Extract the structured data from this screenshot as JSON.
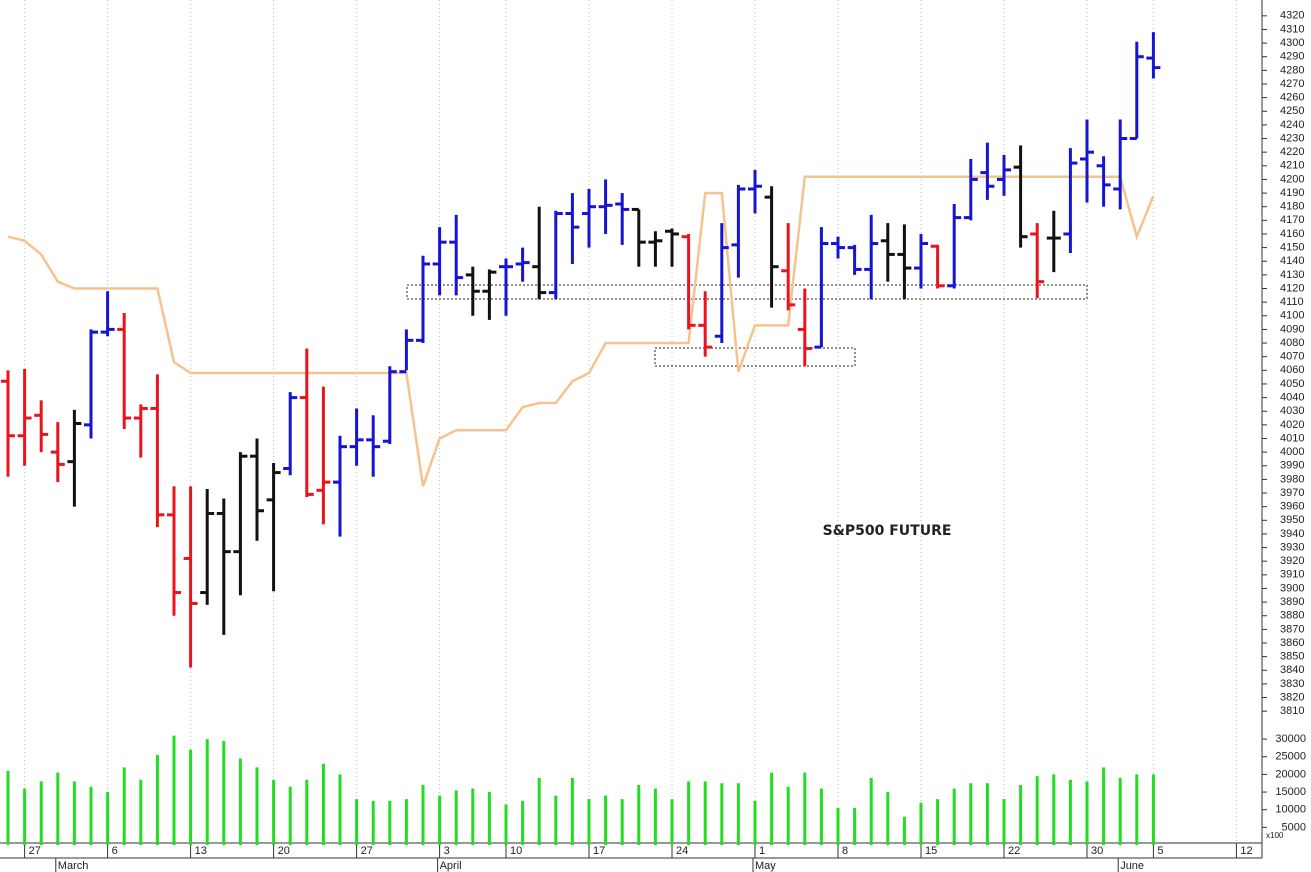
{
  "chart_data": {
    "type": "ohlc",
    "title": "S&P500 FUTURE",
    "categories": [
      null,
      "27",
      null,
      null,
      null,
      null,
      "6",
      null,
      null,
      null,
      null,
      "13",
      null,
      null,
      null,
      null,
      "20",
      null,
      null,
      null,
      null,
      "27",
      null,
      null,
      null,
      null,
      "3",
      null,
      null,
      null,
      "10",
      null,
      null,
      null,
      null,
      "17",
      null,
      null,
      null,
      null,
      "24",
      null,
      null,
      null,
      null,
      "1",
      null,
      null,
      null,
      null,
      "8",
      null,
      null,
      null,
      null,
      "15",
      null,
      null,
      null,
      null,
      "22",
      null,
      null,
      null,
      null,
      "30",
      null,
      null,
      null,
      "5",
      null,
      null,
      null,
      null,
      "12"
    ],
    "month_labels": [
      "March",
      "April",
      "May",
      "June"
    ],
    "open": [
      4052,
      4012,
      4027,
      4000,
      3993,
      4020,
      4088,
      4090,
      4025,
      4032,
      3954,
      3922,
      3897,
      3955,
      3927,
      3997,
      3965,
      3988,
      4040,
      3972,
      3978,
      4004,
      4009,
      4008,
      4059,
      4082,
      4138,
      4154,
      4130,
      4118,
      4136,
      4138,
      4136,
      4117,
      4175,
      4175,
      4180,
      4182,
      4178,
      4154,
      4162,
      4158,
      4093,
      4085,
      4152,
      4193,
      4187,
      4133,
      4090,
      4077,
      4153,
      4150,
      4134,
      4155,
      4145,
      4135,
      4151,
      4122,
      4172,
      4205,
      4200,
      4209,
      4160,
      4157,
      4160,
      4215,
      4210,
      4193,
      4230,
      4289,
      null,
      null,
      null,
      null,
      null
    ],
    "high": [
      4060,
      4061,
      4038,
      4022,
      4031,
      4090,
      4118,
      4102,
      4035,
      4057,
      3975,
      3975,
      3973,
      3966,
      4000,
      4010,
      3992,
      4044,
      4076,
      4048,
      4012,
      4032,
      4027,
      4063,
      4090,
      4144,
      4165,
      4174,
      4136,
      4134,
      4142,
      4150,
      4180,
      4177,
      4190,
      4193,
      4200,
      4190,
      4178,
      4162,
      4164,
      4160,
      4118,
      4168,
      4196,
      4207,
      4195,
      4168,
      4120,
      4165,
      4158,
      4152,
      4174,
      4168,
      4167,
      4160,
      4152,
      4182,
      4215,
      4227,
      4218,
      4225,
      4168,
      4177,
      4223,
      4244,
      4217,
      4244,
      4301,
      4308,
      null,
      null,
      null,
      null,
      null
    ],
    "low": [
      3982,
      3990,
      4000,
      3978,
      3960,
      4010,
      4085,
      4017,
      3996,
      3945,
      3880,
      3842,
      3888,
      3866,
      3895,
      3935,
      3898,
      3983,
      3967,
      3947,
      3938,
      3990,
      3982,
      4006,
      4060,
      4080,
      4115,
      4115,
      4100,
      4097,
      4100,
      4125,
      4112,
      4112,
      4138,
      4150,
      4160,
      4152,
      4136,
      4136,
      4136,
      4090,
      4070,
      4080,
      4128,
      4175,
      4106,
      4104,
      4063,
      4077,
      4142,
      4130,
      4112,
      4125,
      4112,
      4120,
      4120,
      4120,
      4170,
      4185,
      4188,
      4150,
      4113,
      4132,
      4146,
      4183,
      4180,
      4178,
      4230,
      4274,
      null,
      null,
      null,
      null,
      null
    ],
    "close": [
      4012,
      4025,
      4013,
      3991,
      4021,
      4088,
      4090,
      4025,
      4032,
      3954,
      3897,
      3889,
      3955,
      3927,
      3997,
      3957,
      3985,
      4040,
      3969,
      3978,
      4004,
      4009,
      4004,
      4059,
      4082,
      4138,
      4154,
      4128,
      4118,
      4132,
      4136,
      4139,
      4117,
      4175,
      4165,
      4180,
      4181,
      4178,
      4154,
      4155,
      4160,
      4093,
      4077,
      4150,
      4193,
      4195,
      4136,
      4108,
      4076,
      4153,
      4150,
      4134,
      4153,
      4145,
      4135,
      4153,
      4122,
      4172,
      4200,
      4195,
      4207,
      4158,
      4125,
      4157,
      4212,
      4220,
      4196,
      4230,
      4290,
      4282,
      null,
      null,
      null,
      null,
      null
    ],
    "bar_colors": [
      "r",
      "r",
      "r",
      "r",
      "k",
      "b",
      "b",
      "r",
      "r",
      "r",
      "r",
      "r",
      "k",
      "k",
      "k",
      "k",
      "k",
      "b",
      "r",
      "r",
      "b",
      "b",
      "b",
      "b",
      "b",
      "b",
      "b",
      "b",
      "k",
      "k",
      "b",
      "b",
      "k",
      "b",
      "b",
      "b",
      "b",
      "b",
      "k",
      "k",
      "k",
      "r",
      "r",
      "b",
      "b",
      "b",
      "k",
      "r",
      "r",
      "b",
      "b",
      "b",
      "b",
      "k",
      "k",
      "b",
      "r",
      "b",
      "b",
      "b",
      "b",
      "k",
      "r",
      "k",
      "b",
      "b",
      "b",
      "b",
      "b",
      "b",
      null,
      null,
      null,
      null,
      null
    ],
    "palette": {
      "r": "#e8141e",
      "k": "#111111",
      "b": "#1414d2"
    },
    "reference_line": {
      "color": "#f6c28e",
      "values": [
        4158,
        4155,
        4145,
        4125,
        4120,
        4120,
        4120,
        4120,
        4120,
        4120,
        4066,
        4058,
        4058,
        4058,
        4058,
        4058,
        4058,
        4058,
        4058,
        4058,
        4058,
        4058,
        4058,
        4058,
        4058,
        3975,
        4010,
        4016,
        4016,
        4016,
        4016,
        4033,
        4036,
        4036,
        4052,
        4058,
        4080,
        4080,
        4080,
        4080,
        4080,
        4080,
        4190,
        4190,
        4059,
        4093,
        4093,
        4093,
        4202,
        4202,
        4202,
        4202,
        4202,
        4202,
        4202,
        4202,
        4202,
        4202,
        4202,
        4202,
        4202,
        4202,
        4202,
        4202,
        4202,
        4202,
        4202,
        4202,
        4158,
        4188,
        null,
        null,
        null,
        null,
        null
      ]
    },
    "ylim": [
      3805,
      4325
    ],
    "yticks": [
      3810,
      3820,
      3830,
      3840,
      3850,
      3860,
      3870,
      3880,
      3890,
      3900,
      3910,
      3920,
      3930,
      3940,
      3950,
      3960,
      3970,
      3980,
      3990,
      4000,
      4010,
      4020,
      4030,
      4040,
      4050,
      4060,
      4070,
      4080,
      4090,
      4100,
      4110,
      4120,
      4130,
      4140,
      4150,
      4160,
      4170,
      4180,
      4190,
      4200,
      4210,
      4220,
      4230,
      4240,
      4250,
      4260,
      4270,
      4280,
      4290,
      4300,
      4310,
      4320
    ],
    "volume": {
      "color": "#22dd22",
      "unit_label": "x100",
      "ylim": [
        0,
        34000
      ],
      "yticks": [
        5000,
        10000,
        15000,
        20000,
        25000,
        30000
      ],
      "values": [
        21000,
        16000,
        18000,
        20500,
        18000,
        16500,
        15000,
        22000,
        18500,
        25500,
        31000,
        27000,
        30000,
        29500,
        24500,
        22000,
        18500,
        16500,
        18500,
        23000,
        20000,
        13000,
        12500,
        12500,
        13000,
        17000,
        14000,
        15500,
        16000,
        15000,
        11500,
        12500,
        19000,
        14000,
        19000,
        13000,
        14000,
        13000,
        17000,
        16000,
        13000,
        18000,
        18000,
        17500,
        17500,
        12500,
        20500,
        16500,
        20500,
        16000,
        10500,
        10500,
        19000,
        15000,
        8000,
        12000,
        13000,
        16000,
        17500,
        17500,
        13000,
        17000,
        19500,
        20000,
        18500,
        18000,
        22000,
        19000,
        20000,
        20000,
        null,
        null,
        null,
        null,
        null
      ]
    }
  }
}
